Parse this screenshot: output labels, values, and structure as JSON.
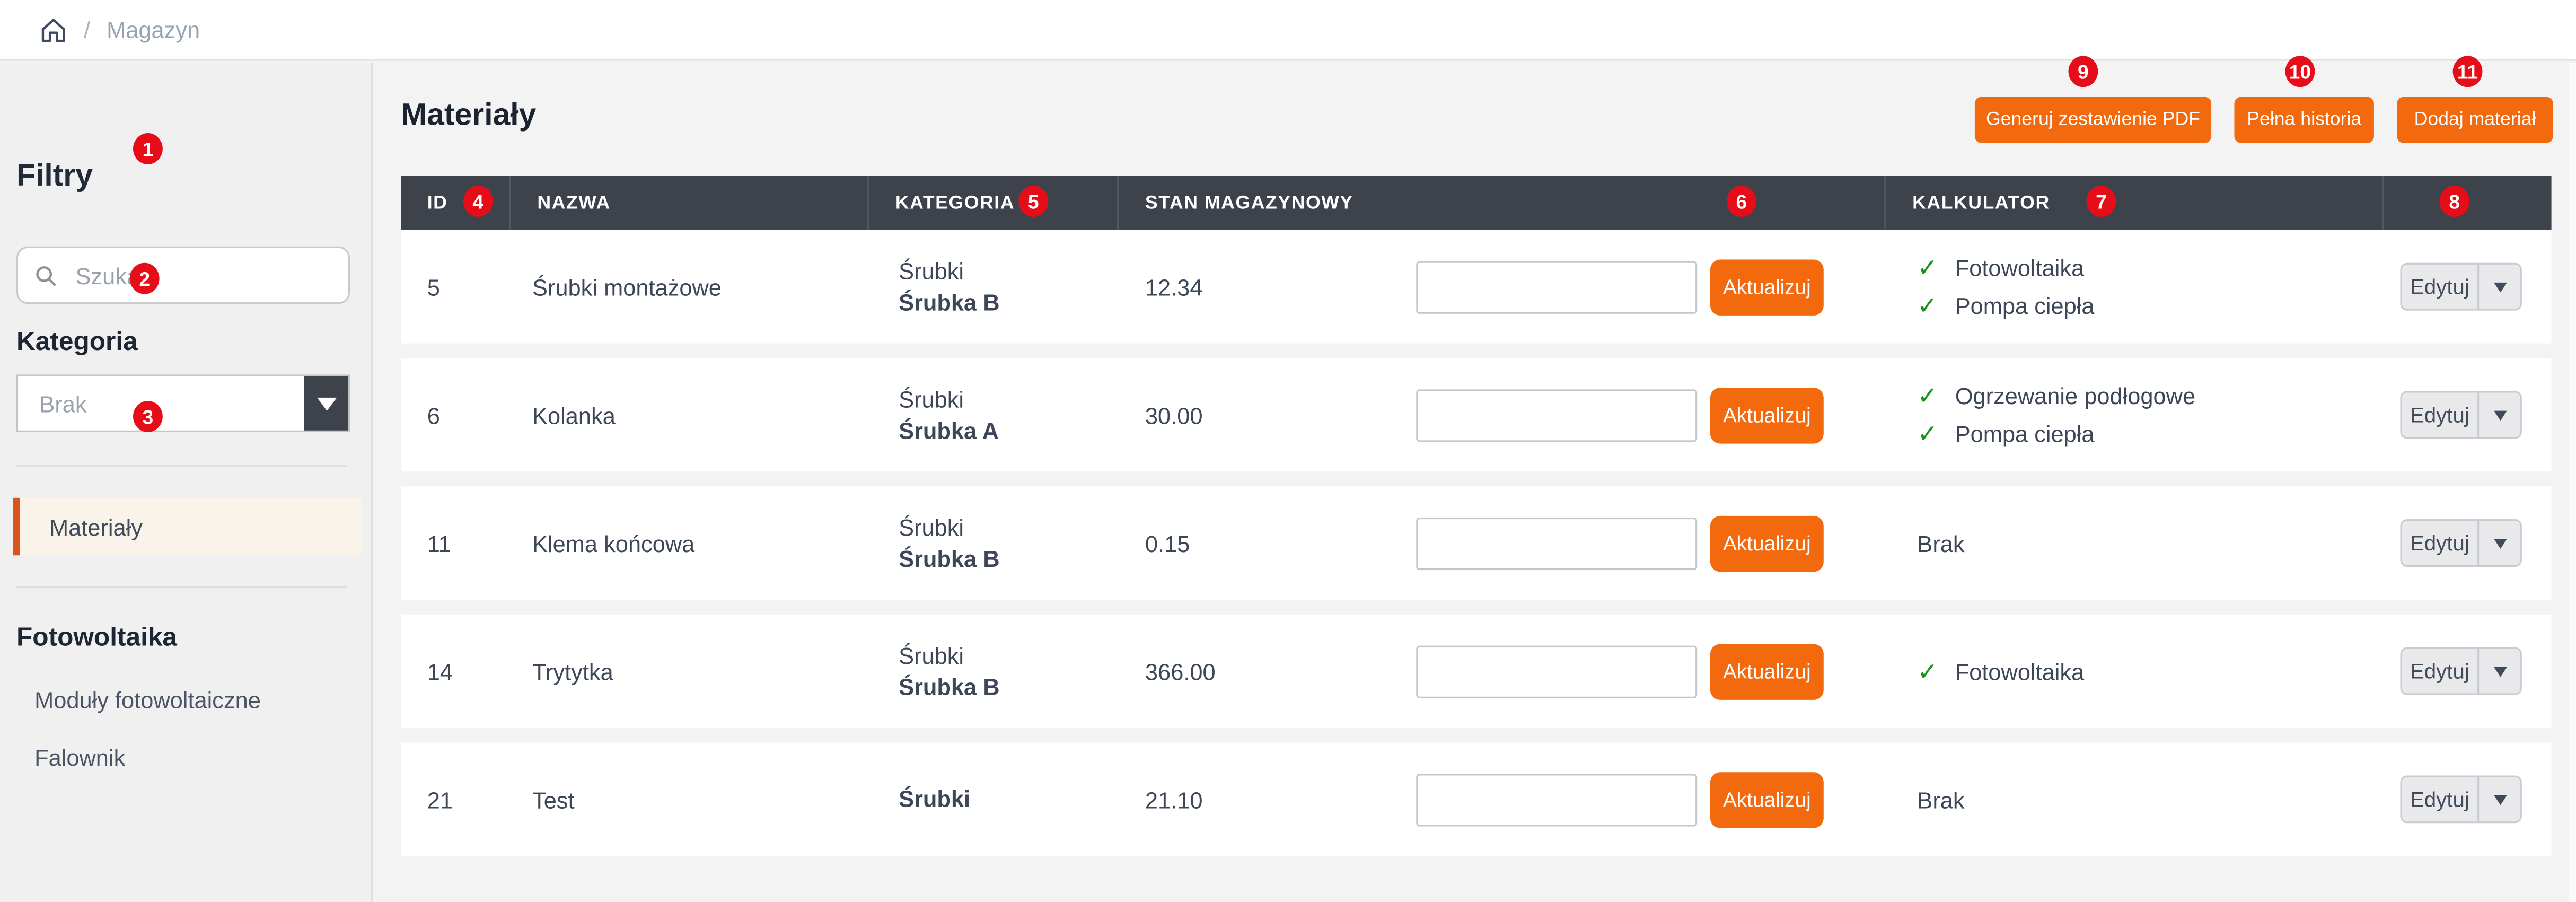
{
  "breadcrumb": {
    "separator": "/",
    "current": "Magazyn"
  },
  "sidebar": {
    "filters_title": "Filtry",
    "search": {
      "placeholder": "Szukaj",
      "value": ""
    },
    "category_label": "Kategoria",
    "category_value": "Brak",
    "nav": [
      {
        "label": "Materiały",
        "active": true
      }
    ],
    "sections": [
      {
        "title": "Fotowoltaika",
        "items": [
          "Moduły fotowoltaiczne",
          "Falownik"
        ]
      }
    ]
  },
  "main": {
    "title": "Materiały",
    "buttons": {
      "generate_pdf": "Generuj zestawienie PDF",
      "full_history": "Pełna historia",
      "add_material": "Dodaj materiał"
    },
    "table": {
      "columns": [
        "ID",
        "NAZWA",
        "KATEGORIA",
        "STAN MAGAZYNOWY",
        "KALKULATOR",
        ""
      ],
      "update_button_label": "Aktualizuj",
      "update_input_value": "",
      "edit_button_label": "Edytuj",
      "none_label": "Brak",
      "rows": [
        {
          "id": "5",
          "name": "Śrubki montażowe",
          "category_parent": "Śrubki",
          "category_child": "Śrubka B",
          "stock": "12.34",
          "calculators": [
            "Fotowoltaika",
            "Pompa ciepła"
          ]
        },
        {
          "id": "6",
          "name": "Kolanka",
          "category_parent": "Śrubki",
          "category_child": "Śrubka A",
          "stock": "30.00",
          "calculators": [
            "Ogrzewanie podłogowe",
            "Pompa ciepła"
          ]
        },
        {
          "id": "11",
          "name": "Klema końcowa",
          "category_parent": "Śrubki",
          "category_child": "Śrubka B",
          "stock": "0.15",
          "calculators": []
        },
        {
          "id": "14",
          "name": "Trytytka",
          "category_parent": "Śrubki",
          "category_child": "Śrubka B",
          "stock": "366.00",
          "calculators": [
            "Fotowoltaika"
          ]
        },
        {
          "id": "21",
          "name": "Test",
          "category_parent": "",
          "category_child": "Śrubki",
          "stock": "21.10",
          "calculators": []
        }
      ]
    }
  },
  "annotations": {
    "badges": [
      "1",
      "2",
      "3",
      "4",
      "5",
      "6",
      "7",
      "8",
      "9",
      "10",
      "11"
    ]
  },
  "icons": {
    "check": "✓",
    "home": "home-icon",
    "search": "search-icon",
    "chevron": "chevron-down-icon"
  },
  "colors": {
    "accent_orange": "#f2690e",
    "badge_red": "#e60c18",
    "header_dark": "#3e424b",
    "check_green": "#1e8e1e",
    "active_nav_bg": "#faf3e9",
    "active_nav_border": "#d8551c"
  }
}
